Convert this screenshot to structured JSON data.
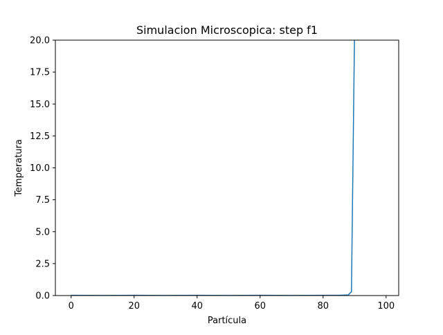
{
  "chart_data": {
    "type": "line",
    "title": "Simulacion Microscopica: step f1",
    "xlabel": "Partícula",
    "ylabel": "Temperatura",
    "xlim": [
      -5,
      104
    ],
    "ylim": [
      0,
      20
    ],
    "xticks": [
      0,
      20,
      40,
      60,
      80,
      100
    ],
    "xtick_labels": [
      "0",
      "20",
      "40",
      "60",
      "80",
      "100"
    ],
    "yticks": [
      0,
      2.5,
      5,
      7.5,
      10,
      12.5,
      15,
      17.5,
      20
    ],
    "ytick_labels": [
      "0.0",
      "2.5",
      "5.0",
      "7.5",
      "10.0",
      "12.5",
      "15.0",
      "17.5",
      "20.0"
    ],
    "grid": false,
    "series": [
      {
        "color": "#1f77b4",
        "x": [
          0,
          10,
          20,
          30,
          40,
          50,
          60,
          70,
          80,
          85,
          88,
          89,
          90,
          91,
          92,
          93,
          94,
          95,
          96,
          97,
          98,
          99
        ],
        "y": [
          0.02,
          0.01,
          0.02,
          0.01,
          0.02,
          0.01,
          0.02,
          0.01,
          0.02,
          0.02,
          0.05,
          0.3,
          21,
          21,
          21,
          21,
          21,
          21,
          21,
          21,
          21,
          21
        ]
      }
    ]
  }
}
